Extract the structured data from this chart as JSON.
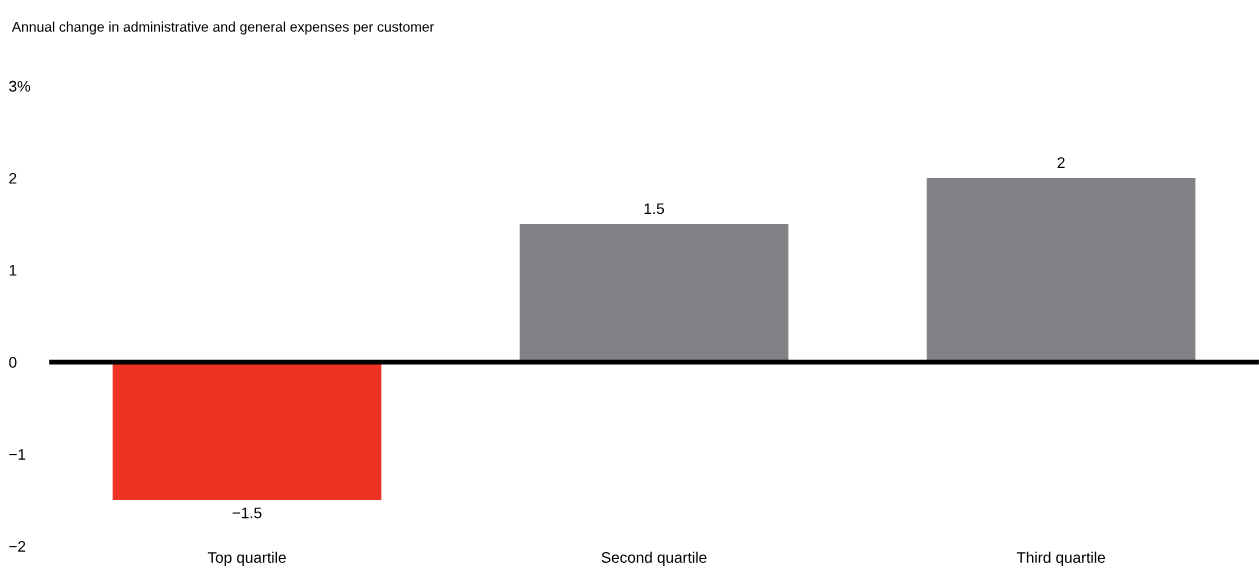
{
  "chart_data": {
    "type": "bar",
    "title": "Annual change in administrative and general expenses per customer",
    "categories": [
      "Top quartile",
      "Second quartile",
      "Third quartile"
    ],
    "values": [
      -1.5,
      1.5,
      2
    ],
    "colors": [
      "#ee3224",
      "#818286",
      "#818286"
    ],
    "value_labels": [
      "−1.5",
      "1.5",
      "2"
    ],
    "ylim": [
      -2,
      3
    ],
    "yticks": [
      {
        "value": -2,
        "label": "−2"
      },
      {
        "value": -1,
        "label": "−1"
      },
      0,
      1,
      2,
      {
        "value": 3,
        "label": "3%"
      }
    ],
    "ref_lines": [
      {
        "axis": "y",
        "value": 0,
        "color": "#000000"
      }
    ],
    "grid": false,
    "legend": false
  }
}
